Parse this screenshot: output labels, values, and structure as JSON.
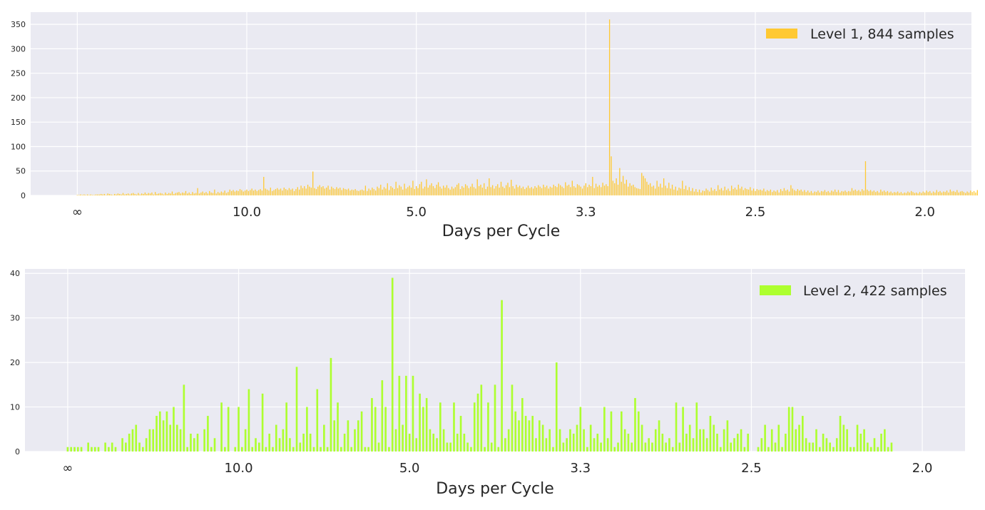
{
  "chart_data": [
    {
      "type": "bar",
      "xlabel": "Days per Cycle",
      "ylabel": "",
      "title": "",
      "ylim": [
        0,
        375
      ],
      "yticks": [
        0,
        50,
        100,
        150,
        200,
        250,
        300,
        350
      ],
      "xticks": [
        {
          "pos": 0,
          "label": "∞"
        },
        {
          "pos": 0.2,
          "label": "10.0"
        },
        {
          "pos": 0.4,
          "label": "5.0"
        },
        {
          "pos": 0.6,
          "label": "3.3"
        },
        {
          "pos": 0.8,
          "label": "2.5"
        },
        {
          "pos": 1.0,
          "label": "2.0"
        }
      ],
      "xlim": [
        -0.055,
        1.055
      ],
      "grid": true,
      "legend_position": "top-right",
      "series": [
        {
          "name": "Level 1, 844 samples",
          "color": "#FFC933",
          "x_start": 0,
          "x_step": 0.002,
          "values": [
            1,
            1,
            2,
            1,
            2,
            1,
            2,
            1,
            2,
            1,
            1,
            2,
            2,
            2,
            3,
            2,
            3,
            1,
            4,
            3,
            2,
            1,
            3,
            2,
            4,
            3,
            2,
            5,
            2,
            3,
            4,
            2,
            4,
            5,
            3,
            2,
            5,
            2,
            4,
            3,
            6,
            3,
            5,
            4,
            6,
            2,
            7,
            3,
            4,
            5,
            4,
            2,
            6,
            3,
            5,
            4,
            8,
            3,
            5,
            6,
            7,
            4,
            6,
            5,
            9,
            4,
            6,
            3,
            7,
            4,
            5,
            15,
            4,
            6,
            8,
            5,
            7,
            4,
            9,
            6,
            5,
            12,
            4,
            7,
            5,
            8,
            6,
            10,
            5,
            7,
            12,
            9,
            11,
            8,
            10,
            9,
            13,
            11,
            8,
            10,
            12,
            9,
            11,
            14,
            10,
            12,
            9,
            11,
            13,
            10,
            38,
            14,
            12,
            10,
            16,
            9,
            11,
            13,
            15,
            12,
            14,
            10,
            16,
            13,
            11,
            15,
            12,
            14,
            9,
            13,
            17,
            12,
            20,
            15,
            19,
            14,
            22,
            18,
            16,
            49,
            15,
            13,
            18,
            21,
            17,
            19,
            14,
            16,
            20,
            12,
            18,
            15,
            13,
            17,
            14,
            16,
            11,
            15,
            13,
            12,
            14,
            10,
            12,
            11,
            13,
            10,
            9,
            11,
            12,
            10,
            20,
            9,
            14,
            11,
            16,
            13,
            10,
            18,
            15,
            22,
            12,
            17,
            14,
            25,
            11,
            19,
            16,
            13,
            28,
            15,
            21,
            18,
            12,
            24,
            14,
            17,
            20,
            16,
            30,
            13,
            19,
            15,
            23,
            28,
            14,
            18,
            33,
            16,
            21,
            25,
            19,
            15,
            22,
            27,
            18,
            14,
            20,
            16,
            21,
            15,
            12,
            18,
            14,
            17,
            22,
            25,
            13,
            19,
            16,
            23,
            20,
            15,
            18,
            24,
            17,
            14,
            33,
            19,
            22,
            16,
            25,
            13,
            18,
            35,
            17,
            21,
            14,
            19,
            23,
            16,
            28,
            18,
            15,
            21,
            26,
            17,
            32,
            19,
            14,
            22,
            17,
            20,
            15,
            18,
            13,
            16,
            20,
            15,
            17,
            14,
            19,
            16,
            21,
            18,
            15,
            22,
            17,
            20,
            14,
            18,
            16,
            22,
            19,
            17,
            24,
            21,
            18,
            15,
            27,
            20,
            22,
            17,
            30,
            19,
            16,
            23,
            21,
            18,
            14,
            20,
            25,
            17,
            22,
            19,
            38,
            15,
            24,
            18,
            21,
            17,
            26,
            20,
            23,
            19,
            360,
            80,
            30,
            25,
            35,
            22,
            56,
            28,
            40,
            24,
            32,
            18,
            25,
            20,
            22,
            17,
            15,
            14,
            13,
            46,
            40,
            35,
            28,
            22,
            25,
            18,
            20,
            14,
            30,
            18,
            24,
            16,
            35,
            20,
            15,
            26,
            14,
            22,
            12,
            18,
            10,
            16,
            14,
            30,
            13,
            20,
            11,
            17,
            9,
            15,
            8,
            13,
            7,
            12,
            6,
            10,
            9,
            14,
            11,
            8,
            16,
            10,
            13,
            9,
            21,
            12,
            15,
            10,
            18,
            11,
            14,
            9,
            20,
            13,
            16,
            12,
            22,
            14,
            18,
            11,
            15,
            13,
            12,
            17,
            10,
            14,
            9,
            13,
            11,
            12,
            10,
            14,
            8,
            11,
            9,
            12,
            7,
            10,
            8,
            11,
            6,
            13,
            9,
            15,
            10,
            12,
            8,
            21,
            14,
            11,
            9,
            13,
            10,
            12,
            8,
            11,
            7,
            10,
            6,
            9,
            5,
            8,
            7,
            10,
            6,
            9,
            8,
            11,
            7,
            9,
            6,
            10,
            8,
            12,
            7,
            11,
            6,
            9,
            8,
            10,
            7,
            9,
            8,
            15,
            10,
            12,
            9,
            11,
            8,
            13,
            10,
            70,
            12,
            9,
            11,
            8,
            10,
            7,
            9,
            6,
            12,
            8,
            10,
            7,
            9,
            6,
            8,
            5,
            7,
            6,
            8,
            5,
            7,
            4,
            6,
            5,
            8,
            6,
            9,
            7,
            5,
            6,
            4,
            7,
            5,
            8,
            6,
            10,
            7,
            9,
            5,
            8,
            6,
            11,
            7,
            9,
            6,
            8,
            7,
            10,
            6,
            12,
            8,
            9,
            7,
            11,
            6,
            8,
            9,
            7,
            5,
            8,
            6,
            10,
            7,
            9,
            6,
            11
          ]
        }
      ]
    },
    {
      "type": "bar",
      "xlabel": "Days per Cycle",
      "ylabel": "",
      "title": "",
      "ylim": [
        0,
        41
      ],
      "yticks": [
        0,
        10,
        20,
        30,
        40
      ],
      "xticks": [
        {
          "pos": 0,
          "label": "∞"
        },
        {
          "pos": 0.2,
          "label": "10.0"
        },
        {
          "pos": 0.4,
          "label": "5.0"
        },
        {
          "pos": 0.6,
          "label": "3.3"
        },
        {
          "pos": 0.8,
          "label": "2.5"
        },
        {
          "pos": 1.0,
          "label": "2.0"
        }
      ],
      "xlim": [
        -0.05,
        1.05
      ],
      "grid": true,
      "legend_position": "top-right",
      "series": [
        {
          "name": "Level 2, 422 samples",
          "color": "#ADFF2F",
          "x_start": 0,
          "x_step": 0.004,
          "values": [
            1,
            1,
            1,
            1,
            1,
            0,
            2,
            1,
            1,
            1,
            0,
            2,
            1,
            2,
            1,
            0,
            3,
            2,
            4,
            5,
            6,
            2,
            1,
            3,
            5,
            5,
            8,
            9,
            7,
            9,
            6,
            10,
            6,
            5,
            15,
            1,
            4,
            3,
            4,
            0,
            5,
            8,
            1,
            3,
            0,
            11,
            1,
            10,
            0,
            1,
            10,
            1,
            5,
            14,
            1,
            3,
            2,
            13,
            1,
            4,
            1,
            6,
            3,
            5,
            11,
            3,
            1,
            19,
            2,
            4,
            10,
            4,
            1,
            14,
            1,
            6,
            1,
            21,
            7,
            11,
            1,
            4,
            7,
            1,
            5,
            7,
            9,
            1,
            1,
            12,
            10,
            2,
            16,
            10,
            1,
            39,
            5,
            17,
            6,
            17,
            4,
            17,
            3,
            13,
            10,
            12,
            5,
            4,
            3,
            11,
            5,
            2,
            2,
            11,
            4,
            8,
            4,
            2,
            1,
            11,
            13,
            15,
            1,
            11,
            2,
            15,
            1,
            34,
            3,
            5,
            15,
            9,
            7,
            12,
            8,
            7,
            8,
            3,
            7,
            6,
            3,
            5,
            1,
            20,
            5,
            2,
            3,
            5,
            4,
            6,
            10,
            5,
            1,
            6,
            3,
            4,
            2,
            10,
            3,
            9,
            1,
            2,
            9,
            5,
            4,
            2,
            12,
            9,
            6,
            2,
            3,
            2,
            5,
            7,
            4,
            2,
            3,
            1,
            11,
            2,
            10,
            4,
            6,
            3,
            11,
            5,
            5,
            3,
            8,
            6,
            4,
            1,
            5,
            7,
            2,
            3,
            4,
            5,
            1,
            4,
            0,
            0,
            1,
            3,
            6,
            1,
            5,
            2,
            6,
            1,
            4,
            10,
            10,
            5,
            6,
            8,
            3,
            2,
            2,
            5,
            1,
            4,
            3,
            2,
            1,
            3,
            8,
            6,
            5,
            1,
            1,
            6,
            4,
            5,
            2,
            1,
            3,
            1,
            4,
            5,
            1,
            2
          ]
        }
      ]
    }
  ]
}
